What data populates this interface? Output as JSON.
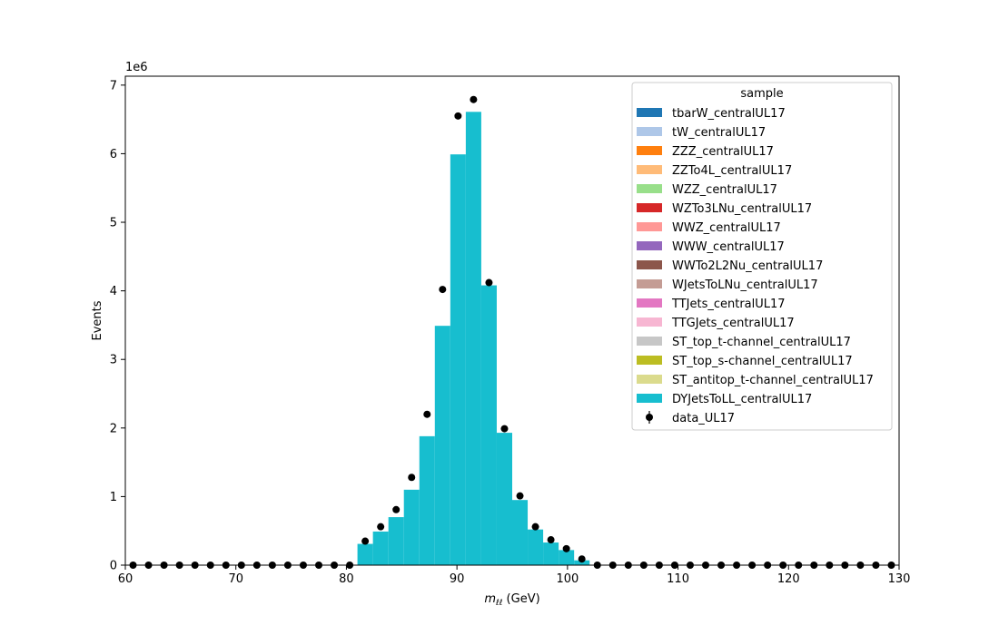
{
  "chart_data": {
    "type": "bar",
    "stacked": true,
    "xlabel_main": "m",
    "xlabel_sub": "ℓℓ",
    "xlabel_unit": " (GeV)",
    "ylabel": "Events",
    "y_scale_label": "1e6",
    "xlim": [
      60,
      130
    ],
    "ylim": [
      0,
      7.13
    ],
    "x_ticks": [
      60,
      70,
      80,
      90,
      100,
      110,
      120,
      130
    ],
    "y_ticks": [
      0,
      1,
      2,
      3,
      4,
      5,
      6,
      7
    ],
    "grid": false,
    "legend_title": "sample",
    "legend_position": "upper-right",
    "series": [
      {
        "name": "tbarW_centralUL17",
        "color": "#1f77b4"
      },
      {
        "name": "tW_centralUL17",
        "color": "#aec7e8"
      },
      {
        "name": "ZZZ_centralUL17",
        "color": "#ff7f0e"
      },
      {
        "name": "ZZTo4L_centralUL17",
        "color": "#ffbb78"
      },
      {
        "name": "WZZ_centralUL17",
        "color": "#98df8a"
      },
      {
        "name": "WZTo3LNu_centralUL17",
        "color": "#d62728"
      },
      {
        "name": "WWZ_centralUL17",
        "color": "#ff9896"
      },
      {
        "name": "WWW_centralUL17",
        "color": "#9467bd"
      },
      {
        "name": "WWTo2L2Nu_centralUL17",
        "color": "#8c564b"
      },
      {
        "name": "WJetsToLNu_centralUL17",
        "color": "#c49c94"
      },
      {
        "name": "TTJets_centralUL17",
        "color": "#e377c2"
      },
      {
        "name": "TTGJets_centralUL17",
        "color": "#f7b6d2"
      },
      {
        "name": "ST_top_t-channel_centralUL17",
        "color": "#c7c7c7"
      },
      {
        "name": "ST_top_s-channel_centralUL17",
        "color": "#bcbd22"
      },
      {
        "name": "ST_antitop_t-channel_centralUL17",
        "color": "#dbdb8d"
      },
      {
        "name": "DYJetsToLL_centralUL17",
        "color": "#17becf",
        "bins": [
          {
            "x0": 81.0,
            "x1": 82.4,
            "value": 0.31
          },
          {
            "x0": 82.4,
            "x1": 83.8,
            "value": 0.49
          },
          {
            "x0": 83.8,
            "x1": 85.2,
            "value": 0.7
          },
          {
            "x0": 85.2,
            "x1": 86.6,
            "value": 1.1
          },
          {
            "x0": 86.6,
            "x1": 88.0,
            "value": 1.88
          },
          {
            "x0": 88.0,
            "x1": 89.4,
            "value": 3.49
          },
          {
            "x0": 89.4,
            "x1": 90.8,
            "value": 5.99
          },
          {
            "x0": 90.8,
            "x1": 92.2,
            "value": 6.61
          },
          {
            "x0": 92.2,
            "x1": 93.6,
            "value": 4.08
          },
          {
            "x0": 93.6,
            "x1": 95.0,
            "value": 1.93
          },
          {
            "x0": 95.0,
            "x1": 96.4,
            "value": 0.95
          },
          {
            "x0": 96.4,
            "x1": 97.8,
            "value": 0.52
          },
          {
            "x0": 97.8,
            "x1": 99.2,
            "value": 0.33
          },
          {
            "x0": 99.2,
            "x1": 100.6,
            "value": 0.22
          },
          {
            "x0": 100.6,
            "x1": 102.0,
            "value": 0.07
          }
        ]
      }
    ],
    "data_series": {
      "name": "data_UL17",
      "color": "#000000",
      "points": [
        [
          60.7,
          0
        ],
        [
          62.1,
          0
        ],
        [
          63.5,
          0
        ],
        [
          64.9,
          0
        ],
        [
          66.3,
          0
        ],
        [
          67.7,
          0
        ],
        [
          69.1,
          0
        ],
        [
          70.5,
          0
        ],
        [
          71.9,
          0
        ],
        [
          73.3,
          0
        ],
        [
          74.7,
          0
        ],
        [
          76.1,
          0
        ],
        [
          77.5,
          0
        ],
        [
          78.9,
          0
        ],
        [
          80.3,
          0
        ],
        [
          81.7,
          0.35
        ],
        [
          83.1,
          0.56
        ],
        [
          84.5,
          0.81
        ],
        [
          85.9,
          1.28
        ],
        [
          87.3,
          2.2
        ],
        [
          88.7,
          4.02
        ],
        [
          90.1,
          6.55
        ],
        [
          91.5,
          6.79
        ],
        [
          92.9,
          4.12
        ],
        [
          94.3,
          1.99
        ],
        [
          95.7,
          1.01
        ],
        [
          97.1,
          0.56
        ],
        [
          98.5,
          0.37
        ],
        [
          99.9,
          0.24
        ],
        [
          101.3,
          0.09
        ],
        [
          102.7,
          0
        ],
        [
          104.1,
          0
        ],
        [
          105.5,
          0
        ],
        [
          106.9,
          0
        ],
        [
          108.3,
          0
        ],
        [
          109.7,
          0
        ],
        [
          111.1,
          0
        ],
        [
          112.5,
          0
        ],
        [
          113.9,
          0
        ],
        [
          115.3,
          0
        ],
        [
          116.7,
          0
        ],
        [
          118.1,
          0
        ],
        [
          119.5,
          0
        ],
        [
          120.9,
          0
        ],
        [
          122.3,
          0
        ],
        [
          123.7,
          0
        ],
        [
          125.1,
          0
        ],
        [
          126.5,
          0
        ],
        [
          127.9,
          0
        ],
        [
          129.3,
          0
        ]
      ]
    }
  }
}
